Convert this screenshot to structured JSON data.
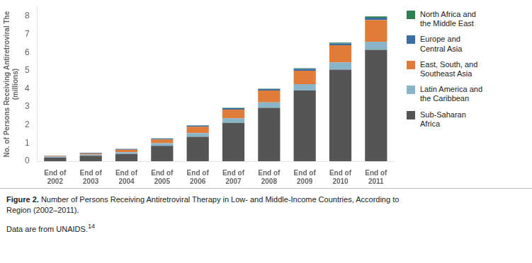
{
  "chart_data": {
    "type": "bar",
    "stacked": true,
    "categories": [
      "End of\n2002",
      "End of\n2003",
      "End of\n2004",
      "End of\n2005",
      "End of\n2006",
      "End of\n2007",
      "End of\n2008",
      "End of\n2009",
      "End of\n2010",
      "End of\n2011"
    ],
    "series": [
      {
        "name": "Sub-Saharan\nAfrica",
        "color": "#555555",
        "values": [
          0.2,
          0.3,
          0.4,
          0.85,
          1.35,
          2.12,
          2.95,
          3.9,
          5.05,
          6.15
        ]
      },
      {
        "name": "Latin America and\nthe Caribbean",
        "color": "#8ab4c8",
        "values": [
          0.05,
          0.07,
          0.1,
          0.15,
          0.2,
          0.25,
          0.3,
          0.35,
          0.4,
          0.45
        ]
      },
      {
        "name": "East, South, and\nSoutheast Asia",
        "color": "#e07b39",
        "values": [
          0.04,
          0.06,
          0.13,
          0.2,
          0.35,
          0.48,
          0.65,
          0.75,
          0.95,
          1.2
        ]
      },
      {
        "name": "Europe and\nCentral Asia",
        "color": "#3a6ea5",
        "values": [
          0.02,
          0.03,
          0.04,
          0.05,
          0.07,
          0.08,
          0.08,
          0.1,
          0.1,
          0.12
        ]
      },
      {
        "name": "North Africa and\nthe Middle East",
        "color": "#2e8050",
        "values": [
          0.005,
          0.007,
          0.01,
          0.01,
          0.015,
          0.02,
          0.025,
          0.03,
          0.05,
          0.07
        ]
      }
    ],
    "ylabel": "No. of Persons Receiving Antiretroviral The\n(millions)",
    "ylim": [
      0,
      8.5
    ],
    "yticks": [
      0,
      1,
      2,
      3,
      4,
      5,
      6,
      7,
      8
    ],
    "grid": false,
    "legend": "right",
    "annotations": [
      "Figure 2.",
      " Number of Persons Receiving Antiretroviral Therapy in Low- and Middle-Income Countries, According to\nRegion (2002–2011).",
      "Data are from UNAIDS.",
      "14"
    ]
  }
}
